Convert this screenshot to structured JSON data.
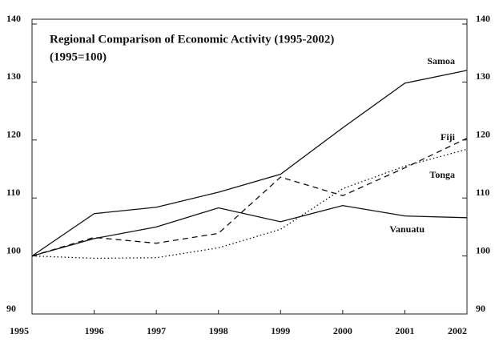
{
  "chart_data": {
    "type": "line",
    "title": "Regional Comparison of Economic Activity (1995-2002)",
    "subtitle": "(1995=100)",
    "x": [
      1995,
      1996,
      1997,
      1998,
      1999,
      2000,
      2001,
      2002
    ],
    "xlim": [
      1995,
      2002
    ],
    "xticks": [
      1995,
      1996,
      1997,
      1998,
      1999,
      2000,
      2001,
      2002
    ],
    "ylim": [
      90,
      140
    ],
    "yticks": [
      90,
      100,
      110,
      120,
      130,
      140
    ],
    "grid": false,
    "series": [
      {
        "name": "Samoa",
        "color": "#111111",
        "dash": "solid",
        "values": [
          100,
          107.3,
          108.4,
          111,
          114.1,
          122.1,
          129.8,
          132
        ]
      },
      {
        "name": "Fiji",
        "color": "#111111",
        "dash": "dashed",
        "values": [
          100,
          103.2,
          102.2,
          103.9,
          113.6,
          110.4,
          115.2,
          120.3
        ]
      },
      {
        "name": "Tonga",
        "color": "#111111",
        "dash": "dotted",
        "values": [
          100,
          99.6,
          99.7,
          101.4,
          104.6,
          111.6,
          115.5,
          118.4
        ]
      },
      {
        "name": "Vanuatu",
        "color": "#111111",
        "dash": "solid",
        "values": [
          100,
          103,
          105,
          108.3,
          105.9,
          108.7,
          106.9,
          106.6
        ]
      }
    ]
  }
}
